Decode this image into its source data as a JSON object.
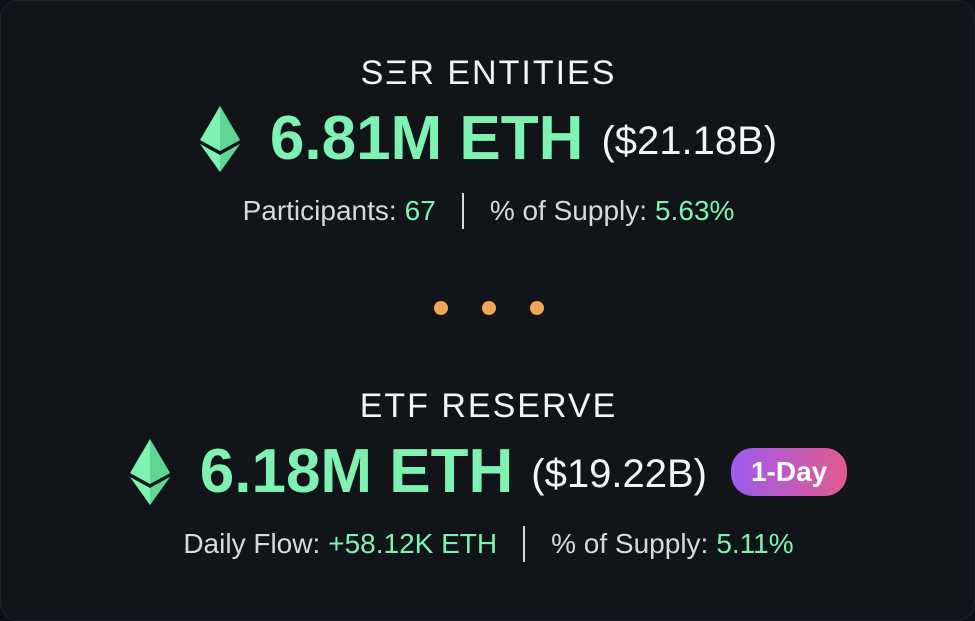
{
  "sections": [
    {
      "title": "SΞR ENTITIES",
      "amount": "6.81M ETH",
      "usd": "($21.18B)",
      "stats": [
        {
          "label": "Participants:",
          "value": "67"
        },
        {
          "label": "% of Supply:",
          "value": "5.63%"
        }
      ]
    },
    {
      "title": "ETF RESERVE",
      "amount": "6.18M ETH",
      "usd": "($19.22B)",
      "badge": "1-Day",
      "stats": [
        {
          "label": "Daily Flow:",
          "value": "+58.12K ETH"
        },
        {
          "label": "% of Supply:",
          "value": "5.11%"
        }
      ]
    }
  ],
  "icons": {
    "eth": "ethereum-icon",
    "separator": "dots-separator"
  },
  "colors": {
    "accent_green": "#7ef2b0",
    "dot_orange": "#f2a35e",
    "badge_gradient_start": "#9c5cf0",
    "badge_gradient_end": "#e25a8f",
    "background": "#11151a"
  }
}
